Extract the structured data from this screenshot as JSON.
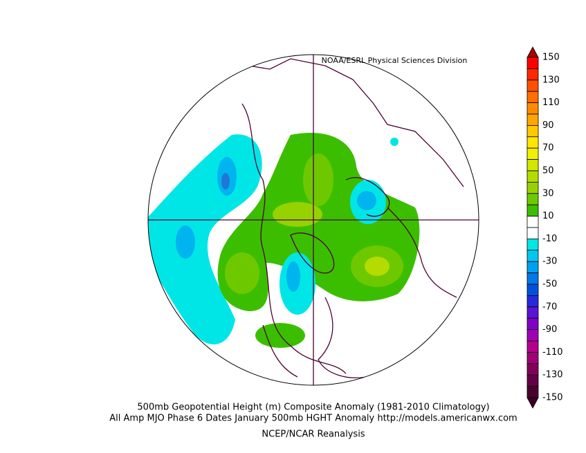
{
  "header": "NOAA/ESRL Physical Sciences Division",
  "colorbar": {
    "labels": [
      150,
      130,
      110,
      90,
      70,
      50,
      30,
      10,
      -10,
      -30,
      -50,
      -70,
      -90,
      -110,
      -130,
      -150
    ],
    "colors": [
      "#a50000",
      "#ff0000",
      "#ff2800",
      "#ff5000",
      "#ff6e00",
      "#ff8c00",
      "#ffa500",
      "#ffc800",
      "#ffe600",
      "#f0f000",
      "#d2e600",
      "#b4dc00",
      "#96d200",
      "#6ec800",
      "#3cbe00",
      "#ffffff",
      "#ffffff",
      "#00e6e6",
      "#00c8f0",
      "#00a0f0",
      "#0078e6",
      "#0050dc",
      "#2828dc",
      "#5a14d2",
      "#8200c8",
      "#a000b4",
      "#b4008c",
      "#a00078",
      "#82005a",
      "#640046",
      "#4b0032",
      "#3c0028"
    ]
  },
  "caption": [
    "500mb Geopotential Height (m) Composite Anomaly (1981-2010 Climatology)",
    "All Amp MJO Phase 6 Dates January 500mb  HGHT Anomaly http://models.americanwx.com",
    "NCEP/NCAR Reanalysis"
  ]
}
